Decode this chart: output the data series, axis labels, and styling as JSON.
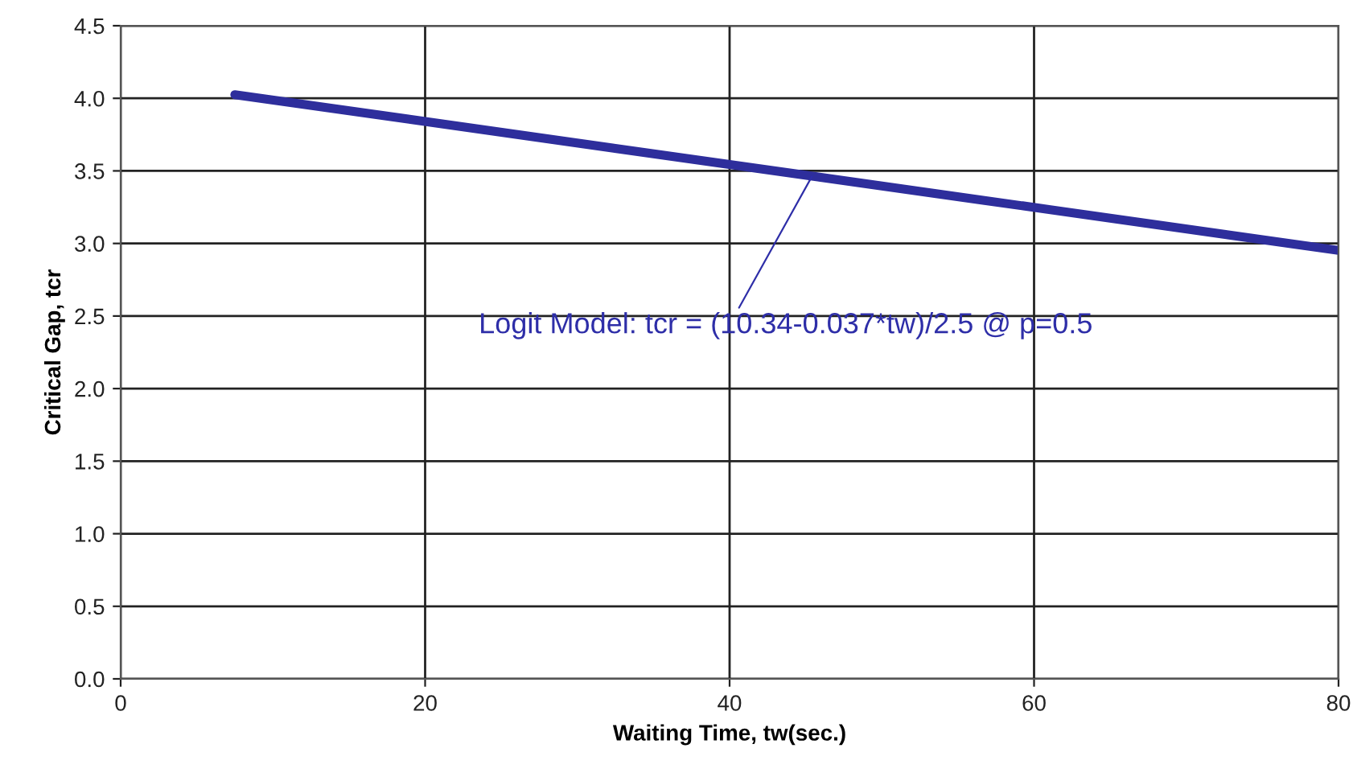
{
  "chart_data": {
    "type": "line",
    "xlabel": "Waiting Time, tw(sec.)",
    "ylabel": "Critical Gap, tcr",
    "x": [
      7.5,
      80
    ],
    "series": [
      {
        "color": "#2e2e9c",
        "values": [
          4.025,
          2.952
        ]
      }
    ],
    "xlim": [
      0,
      80
    ],
    "xticks": [
      0,
      20,
      40,
      60,
      80
    ],
    "ylim": [
      0,
      4.5
    ],
    "yticks": [
      {
        "value": 0,
        "label": "0.0"
      },
      {
        "value": 0.5,
        "label": "0.5"
      },
      {
        "value": 1,
        "label": "1.0"
      },
      {
        "value": 1.5,
        "label": "1.5"
      },
      {
        "value": 2,
        "label": "2.0"
      },
      {
        "value": 2.5,
        "label": "2.5"
      },
      {
        "value": 3,
        "label": "3.0"
      },
      {
        "value": 3.5,
        "label": "3.5"
      },
      {
        "value": 4,
        "label": "4.0"
      },
      {
        "value": 4.5,
        "label": "4.5"
      }
    ],
    "grid": true,
    "marker": "none",
    "line_style": "solid",
    "annotations": [
      {
        "text": "Logit Model: tcr = (10.34-0.037*tw)/2.5 @ p=0.5",
        "x": 45.4,
        "y": 3.46
      }
    ]
  }
}
